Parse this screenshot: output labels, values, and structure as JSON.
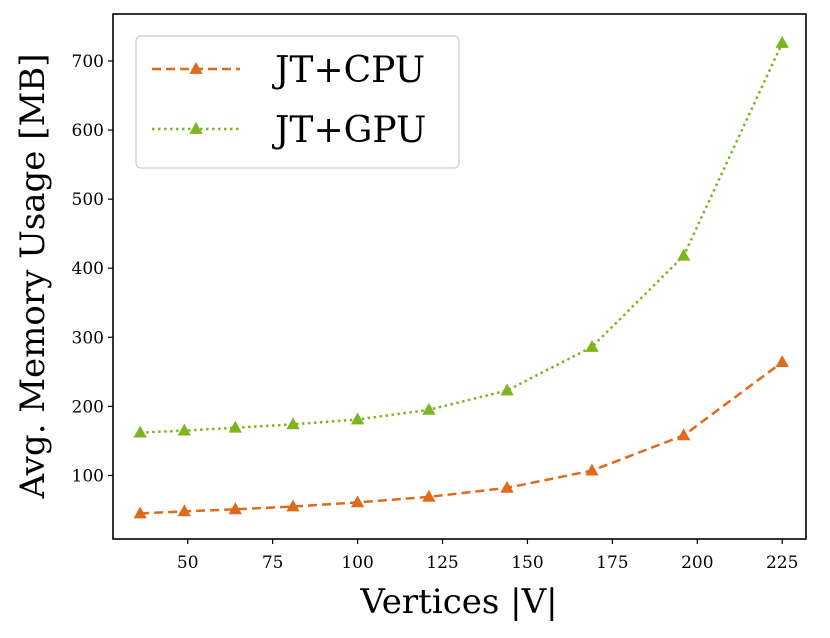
{
  "chart_data": {
    "type": "line",
    "title": "",
    "xlabel": "Vertices |V|",
    "ylabel": "Avg. Memory Usage [MB]",
    "xlim": [
      28,
      232
    ],
    "ylim": [
      8,
      768
    ],
    "xticks": [
      50,
      75,
      100,
      125,
      150,
      175,
      200,
      225
    ],
    "yticks": [
      100,
      200,
      300,
      400,
      500,
      600,
      700
    ],
    "grid": false,
    "legend_position": "top-left",
    "series": [
      {
        "name": "JT+CPU",
        "color": "#E06A1A",
        "linestyle": "dashed",
        "marker": "triangle",
        "x": [
          36,
          49,
          64,
          81,
          100,
          121,
          144,
          169,
          196,
          225
        ],
        "y": [
          45,
          48,
          51,
          55,
          61,
          69,
          82,
          107,
          158,
          264
        ]
      },
      {
        "name": "JT+GPU",
        "color": "#7CB51E",
        "linestyle": "dotted",
        "marker": "triangle",
        "x": [
          36,
          49,
          64,
          81,
          100,
          121,
          144,
          169,
          196,
          225
        ],
        "y": [
          162,
          165,
          169,
          174,
          181,
          195,
          223,
          286,
          418,
          726
        ]
      }
    ]
  }
}
